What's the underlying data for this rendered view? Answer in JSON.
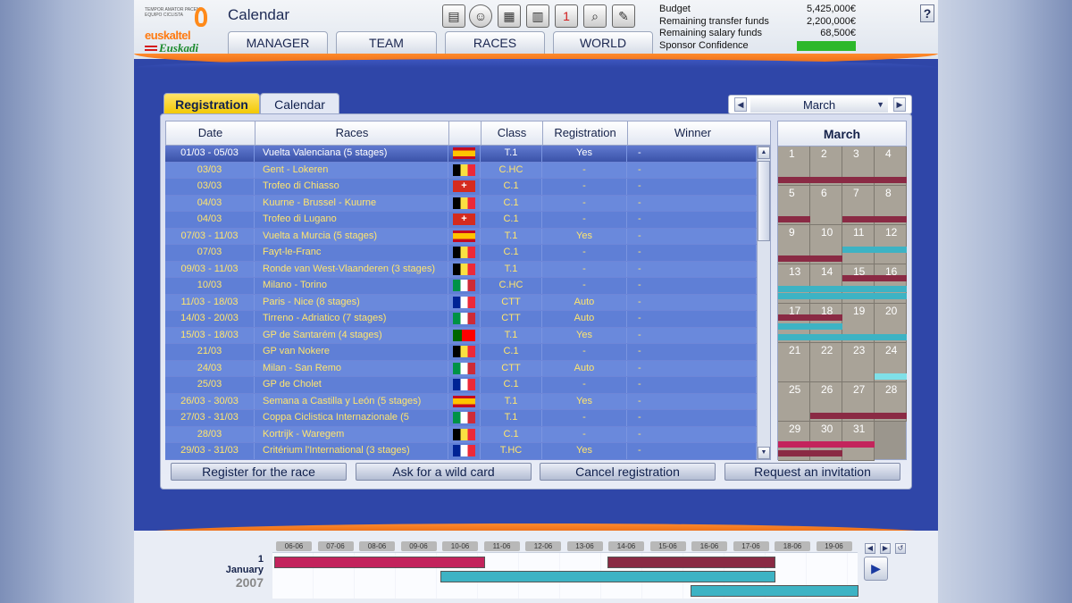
{
  "header": {
    "title": "Calendar",
    "logo": {
      "tiny": "TEMPOR AMATOR PACEM · EQUIPO CICLISTA",
      "line1": "euskaltel",
      "line2": "Euskadi"
    },
    "nav": [
      "MANAGER",
      "TEAM",
      "RACES",
      "WORLD"
    ],
    "tools": [
      "notebook-icon",
      "cyclist-avatar-icon",
      "money-icon",
      "newspaper-icon",
      "calendar-icon",
      "magnifier-icon",
      "notes-icon"
    ],
    "calendar_icon_number": "1",
    "budget": [
      {
        "label": "Budget",
        "value": "5,425,000€"
      },
      {
        "label": "Remaining transfer funds",
        "value": "2,200,000€"
      },
      {
        "label": "Remaining salary funds",
        "value": "68,500€"
      },
      {
        "label": "Sponsor Confidence",
        "value": ""
      }
    ],
    "sponsor_confidence_color": "#2db82a",
    "help": "?"
  },
  "tabs": {
    "registration": "Registration",
    "calendar": "Calendar"
  },
  "month_select": {
    "value": "March"
  },
  "table": {
    "columns": [
      "Date",
      "Races",
      "",
      "Class",
      "Registration",
      "Winner"
    ],
    "rows": [
      {
        "date": "01/03 - 05/03",
        "race": "Vuelta Valenciana (5 stages)",
        "flag": "es",
        "class": "T.1",
        "registration": "Yes",
        "winner": "-"
      },
      {
        "date": "03/03",
        "race": "Gent - Lokeren",
        "flag": "be",
        "class": "C.HC",
        "registration": "-",
        "winner": "-"
      },
      {
        "date": "03/03",
        "race": "Trofeo di Chiasso",
        "flag": "ch",
        "class": "C.1",
        "registration": "-",
        "winner": "-"
      },
      {
        "date": "04/03",
        "race": "Kuurne - Brussel - Kuurne",
        "flag": "be",
        "class": "C.1",
        "registration": "-",
        "winner": "-"
      },
      {
        "date": "04/03",
        "race": "Trofeo di Lugano",
        "flag": "ch",
        "class": "C.1",
        "registration": "-",
        "winner": "-"
      },
      {
        "date": "07/03 - 11/03",
        "race": "Vuelta a Murcia (5 stages)",
        "flag": "es",
        "class": "T.1",
        "registration": "Yes",
        "winner": "-"
      },
      {
        "date": "07/03",
        "race": "Fayt-le-Franc",
        "flag": "be",
        "class": "C.1",
        "registration": "-",
        "winner": "-"
      },
      {
        "date": "09/03 - 11/03",
        "race": "Ronde van West-Vlaanderen (3 stages)",
        "flag": "be",
        "class": "T.1",
        "registration": "-",
        "winner": "-"
      },
      {
        "date": "10/03",
        "race": "Milano - Torino",
        "flag": "it",
        "class": "C.HC",
        "registration": "-",
        "winner": "-"
      },
      {
        "date": "11/03 - 18/03",
        "race": "Paris - Nice (8 stages)",
        "flag": "fr",
        "class": "CTT",
        "registration": "Auto",
        "winner": "-"
      },
      {
        "date": "14/03 - 20/03",
        "race": "Tirreno - Adriatico (7 stages)",
        "flag": "it",
        "class": "CTT",
        "registration": "Auto",
        "winner": "-"
      },
      {
        "date": "15/03 - 18/03",
        "race": "GP de Santarém (4 stages)",
        "flag": "pt",
        "class": "T.1",
        "registration": "Yes",
        "winner": "-"
      },
      {
        "date": "21/03",
        "race": "GP van Nokere",
        "flag": "be",
        "class": "C.1",
        "registration": "-",
        "winner": "-"
      },
      {
        "date": "24/03",
        "race": "Milan - San Remo",
        "flag": "it",
        "class": "CTT",
        "registration": "Auto",
        "winner": "-"
      },
      {
        "date": "25/03",
        "race": "GP de Cholet",
        "flag": "fr",
        "class": "C.1",
        "registration": "-",
        "winner": "-"
      },
      {
        "date": "26/03 - 30/03",
        "race": "Semana a Castilla y León (5 stages)",
        "flag": "es",
        "class": "T.1",
        "registration": "Yes",
        "winner": "-"
      },
      {
        "date": "27/03 - 31/03",
        "race": "Coppa Ciclistica Internazionale (5",
        "flag": "it",
        "class": "T.1",
        "registration": "-",
        "winner": "-"
      },
      {
        "date": "28/03",
        "race": "Kortrijk - Waregem",
        "flag": "be",
        "class": "C.1",
        "registration": "-",
        "winner": "-"
      },
      {
        "date": "29/03 - 31/03",
        "race": "Critérium l'International (3 stages)",
        "flag": "fr",
        "class": "T.HC",
        "registration": "Yes",
        "winner": "-"
      }
    ]
  },
  "actions": [
    "Register for the race",
    "Ask for a wild card",
    "Cancel registration",
    "Request an invitation"
  ],
  "mini_calendar": {
    "month": "March",
    "days": [
      "1",
      "2",
      "3",
      "4",
      "5",
      "6",
      "7",
      "8",
      "9",
      "10",
      "11",
      "12",
      "13",
      "14",
      "15",
      "16",
      "17",
      "18",
      "19",
      "20",
      "21",
      "22",
      "23",
      "24",
      "25",
      "26",
      "27",
      "28",
      "29",
      "30",
      "31"
    ]
  },
  "timeline": {
    "day": "1",
    "month": "January",
    "year": "2007",
    "labels": [
      "06-06",
      "07-06",
      "08-06",
      "09-06",
      "10-06",
      "11-06",
      "12-06",
      "13-06",
      "14-06",
      "15-06",
      "16-06",
      "17-06",
      "18-06",
      "19-06"
    ]
  },
  "colors": {
    "row_text": "#ffe56e",
    "row_selected": "#3b53a9",
    "bar_magenta": "#c3245c",
    "bar_maroon": "#8a2a44",
    "bar_teal": "#3db3c4"
  }
}
